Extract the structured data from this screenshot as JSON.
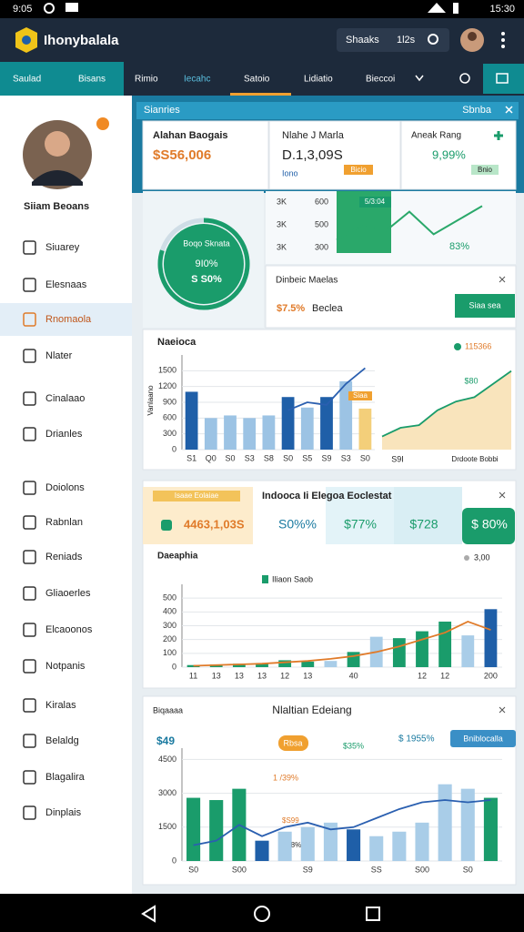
{
  "status_bar": {
    "time_left": "9:05",
    "time_right": "15:30"
  },
  "app_bar": {
    "title": "Ihonybalala",
    "search_text": "Shaaks",
    "search_count": "1l2s"
  },
  "tabs": [
    "Saulad",
    "Bisans",
    "Rimio",
    "Iecahc",
    "Satoio",
    "Lidiatio",
    "Bieccoi"
  ],
  "profile": {
    "name": "Siiam Beoans"
  },
  "sidebar": [
    {
      "label": "Siuarey",
      "active": false
    },
    {
      "label": "Elesnaas",
      "active": false
    },
    {
      "label": "Rnomaola",
      "active": true
    },
    {
      "label": "Nlater",
      "active": false
    },
    {
      "label": "Cinalaao",
      "active": false
    },
    {
      "label": "Drianles",
      "active": false
    },
    {
      "label": "Doiolons",
      "active": false
    },
    {
      "label": "Rabnlan",
      "active": false
    },
    {
      "label": "Reniads",
      "active": false
    },
    {
      "label": "Gliaoerles",
      "active": false
    },
    {
      "label": "Elcaoonos",
      "active": false
    },
    {
      "label": "Notpanis",
      "active": false
    },
    {
      "label": "Kiralas",
      "active": false
    },
    {
      "label": "Belaldg",
      "active": false
    },
    {
      "label": "Blagalira",
      "active": false
    },
    {
      "label": "Dinplais",
      "active": false
    }
  ],
  "summary": {
    "title": "Sianries",
    "action": "Sbnba",
    "cards": [
      {
        "label": "Alahan Baogais",
        "value": "$S56,006"
      },
      {
        "label": "Nlahe J Marla",
        "value": "D.1,3,09S",
        "tag": "Iono",
        "badge": "Bicio"
      },
      {
        "label": "Aneak Rang",
        "value": "9,99%",
        "badge": "Bnio"
      }
    ]
  },
  "gauge": {
    "label": "Boqo Sknata",
    "value": "9I0%",
    "sub": "S S0%",
    "percent": 80
  },
  "mini_chart": {
    "rows": [
      [
        "3K",
        "600"
      ],
      [
        "3K",
        "500"
      ],
      [
        "3K",
        "300"
      ]
    ],
    "badge": "5/3:04",
    "stat": "83%",
    "values": [
      20,
      45,
      35,
      70,
      30,
      55,
      80
    ],
    "ylim": [
      0,
      100
    ]
  },
  "dinbeic": {
    "title": "Dinbeic Maelas",
    "value": "$7.5%",
    "label": "Beclea",
    "button": "Siaa sea"
  },
  "chart_a": {
    "title": "Naeioca",
    "axis_label": "Vanlaano",
    "legend": "115366",
    "badge": "Siaa",
    "note_value": "$80",
    "note_label": "Drdoote Bobbi",
    "area_label": "S9I",
    "ylim": [
      0,
      1800
    ],
    "yticks": [
      0,
      300,
      600,
      900,
      1200,
      1500
    ],
    "categories": [
      "S1",
      "Q0",
      "S0",
      "S3",
      "S8",
      "S0",
      "S5",
      "S9",
      "S3",
      "S0"
    ],
    "values": [
      1100,
      600,
      650,
      600,
      650,
      1000,
      800,
      1000,
      1300,
      780
    ],
    "bar_colors": [
      "#1f5fa8",
      "#9cc3e4",
      "#9cc3e4",
      "#9cc3e4",
      "#9cc3e4",
      "#1f5fa8",
      "#9cc3e4",
      "#1f5fa8",
      "#9cc3e4",
      "#f3cf7a"
    ],
    "line": [
      null,
      null,
      null,
      null,
      null,
      750,
      900,
      850,
      1250,
      1550
    ],
    "line_color": "#2a5fb0",
    "area": [
      150,
      250,
      280,
      450,
      550,
      600,
      750,
      900
    ],
    "area_color": "#1a9c6b",
    "area_ylim": [
      0,
      1000
    ]
  },
  "section_b": {
    "title": "Indooca Ii Elegoa Eoclestat",
    "tiles": [
      {
        "label": "Isaae Eolaiae",
        "value": "4463,1,03S"
      },
      {
        "value": "S0%%"
      },
      {
        "value": "$77%"
      },
      {
        "value": "$728"
      },
      {
        "value": "$ 80%"
      }
    ]
  },
  "chart_b": {
    "title": "Daeaphia",
    "legend": "Iliaon Saob",
    "legend_right": "3,00",
    "ylim": [
      0,
      600
    ],
    "yticks": [
      0,
      100,
      200,
      300,
      400,
      500
    ],
    "categories": [
      "11",
      "13",
      "13",
      "13",
      "12",
      "13",
      null,
      "40",
      null,
      null,
      "12",
      "12",
      null,
      "200"
    ],
    "values": [
      15,
      20,
      25,
      30,
      50,
      40,
      45,
      110,
      220,
      210,
      260,
      330,
      230,
      420
    ],
    "bar_colors": [
      "#1a9c6b",
      "#1a9c6b",
      "#1a9c6b",
      "#1a9c6b",
      "#1a9c6b",
      "#1a9c6b",
      "#a9cde8",
      "#1a9c6b",
      "#a9cde8",
      "#1a9c6b",
      "#1a9c6b",
      "#1a9c6b",
      "#a9cde8",
      "#1f5fa8"
    ],
    "line": [
      10,
      15,
      20,
      25,
      35,
      45,
      60,
      80,
      110,
      150,
      200,
      250,
      330,
      270
    ],
    "line_color": "#e07b2a"
  },
  "chart_c": {
    "title": "Nlaltian Edeiang",
    "subtitle": "Biqaaaa",
    "kpi": "$49",
    "badge": "Rbsa",
    "note_top": "$ 1955%",
    "note_mid": "$35%",
    "note_low": "1 /39%",
    "note_a": "$S99",
    "note_b": "$ 8%",
    "button": "Bniblocalla",
    "ylim": [
      0,
      5000
    ],
    "yticks": [
      0,
      1500,
      3000,
      4500
    ],
    "categories": [
      "S0",
      null,
      "S00",
      null,
      null,
      "S9",
      null,
      null,
      "SS",
      null,
      "S00",
      null,
      "S0",
      null
    ],
    "values": [
      2800,
      2700,
      3200,
      900,
      1300,
      1500,
      1700,
      1400,
      1100,
      1300,
      1700,
      3400,
      3200,
      2800
    ],
    "bar_colors": [
      "#1a9c6b",
      "#1a9c6b",
      "#1a9c6b",
      "#1f5fa8",
      "#a9cde8",
      "#a9cde8",
      "#a9cde8",
      "#1f5fa8",
      "#a9cde8",
      "#a9cde8",
      "#a9cde8",
      "#a9cde8",
      "#a9cde8",
      "#1a9c6b"
    ],
    "line": [
      700,
      900,
      1600,
      1100,
      1500,
      1700,
      1400,
      1500,
      1900,
      2300,
      2600,
      2700,
      2600,
      2700
    ],
    "line_color": "#2a5fb0"
  }
}
